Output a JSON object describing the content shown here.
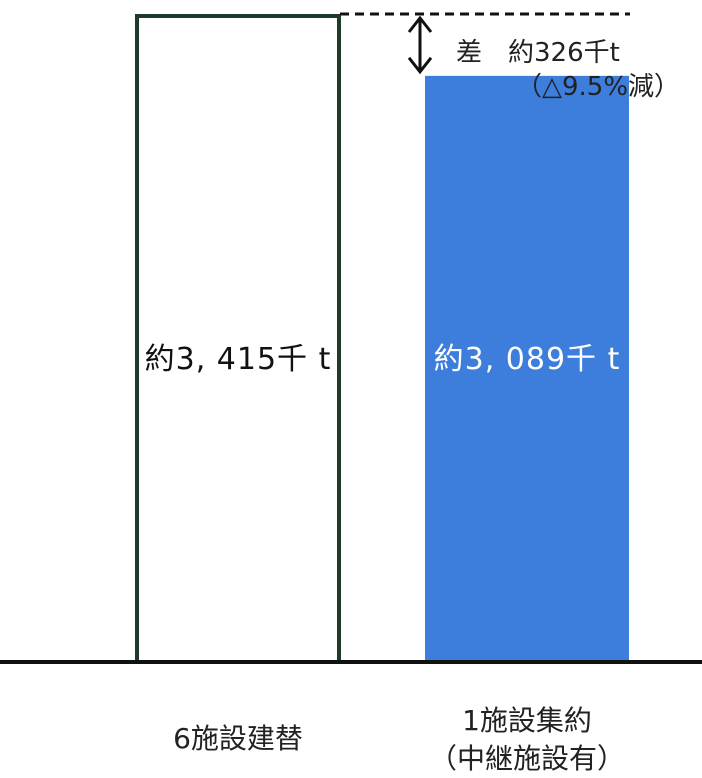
{
  "chart_data": {
    "type": "bar",
    "categories": [
      "6施設建替",
      "1施設集約（中継施設有）"
    ],
    "category_lines": [
      [
        "6施設建替"
      ],
      [
        "1施設集約",
        "（中継施設有）"
      ]
    ],
    "values": [
      3415,
      3089
    ],
    "unit": "千t",
    "data_labels": [
      "約3, 415千 t",
      "約3, 089千 t"
    ],
    "bar_styles": [
      {
        "fill": "#ffffff",
        "stroke": "#1e3a2a",
        "label_color": "#111111"
      },
      {
        "fill": "#3d7ddb",
        "stroke": "none",
        "label_color": "#ffffff"
      }
    ],
    "ylim": [
      0,
      3415
    ],
    "annotation": {
      "text": "差　約326千t",
      "subtext": "（△9.5%減）",
      "difference": 326,
      "percent": -9.5
    },
    "title": "",
    "xlabel": "",
    "ylabel": ""
  }
}
